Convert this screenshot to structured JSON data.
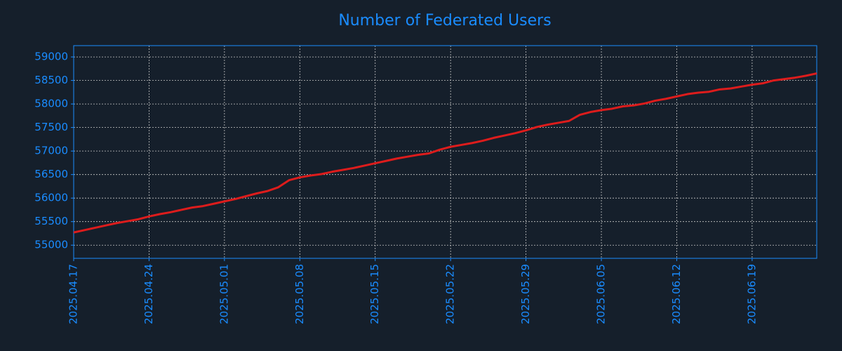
{
  "chart_data": {
    "type": "line",
    "title": "Number of Federated Users",
    "x": [
      "2025-04-17",
      "2025-04-18",
      "2025-04-19",
      "2025-04-20",
      "2025-04-21",
      "2025-04-22",
      "2025-04-23",
      "2025-04-24",
      "2025-04-25",
      "2025-04-26",
      "2025-04-27",
      "2025-04-28",
      "2025-04-29",
      "2025-04-30",
      "2025-05-01",
      "2025-05-02",
      "2025-05-03",
      "2025-05-04",
      "2025-05-05",
      "2025-05-06",
      "2025-05-07",
      "2025-05-08",
      "2025-05-09",
      "2025-05-10",
      "2025-05-11",
      "2025-05-12",
      "2025-05-13",
      "2025-05-14",
      "2025-05-15",
      "2025-05-16",
      "2025-05-17",
      "2025-05-18",
      "2025-05-19",
      "2025-05-20",
      "2025-05-21",
      "2025-05-22",
      "2025-05-23",
      "2025-05-24",
      "2025-05-25",
      "2025-05-26",
      "2025-05-27",
      "2025-05-28",
      "2025-05-29",
      "2025-05-30",
      "2025-05-31",
      "2025-06-01",
      "2025-06-02",
      "2025-06-03",
      "2025-06-04",
      "2025-06-05",
      "2025-06-06",
      "2025-06-07",
      "2025-06-08",
      "2025-06-09",
      "2025-06-10",
      "2025-06-11",
      "2025-06-12",
      "2025-06-13",
      "2025-06-14",
      "2025-06-15",
      "2025-06-16",
      "2025-06-17",
      "2025-06-18",
      "2025-06-19",
      "2025-06-20",
      "2025-06-21",
      "2025-06-22",
      "2025-06-23",
      "2025-06-24",
      "2025-06-25"
    ],
    "series": [
      {
        "color": "#dd1c1c",
        "values": [
          55270,
          55320,
          55370,
          55420,
          55470,
          55510,
          55550,
          55610,
          55660,
          55700,
          55750,
          55800,
          55830,
          55880,
          55930,
          55980,
          56040,
          56100,
          56150,
          56230,
          56380,
          56440,
          56480,
          56510,
          56560,
          56600,
          56640,
          56690,
          56740,
          56790,
          56840,
          56880,
          56920,
          56950,
          57030,
          57090,
          57130,
          57170,
          57220,
          57280,
          57330,
          57380,
          57440,
          57510,
          57560,
          57600,
          57640,
          57770,
          57830,
          57870,
          57900,
          57950,
          57970,
          58010,
          58070,
          58110,
          58160,
          58210,
          58240,
          58260,
          58310,
          58330,
          58370,
          58410,
          58440,
          58500,
          58530,
          58560,
          58600,
          58650
        ]
      }
    ],
    "xlim": [
      "2025-04-17",
      "2025-06-25"
    ],
    "xticks": [
      {
        "value": "2025-04-17",
        "label": "2025.04.17"
      },
      {
        "value": "2025-04-24",
        "label": "2025.04.24"
      },
      {
        "value": "2025-05-01",
        "label": "2025.05.01"
      },
      {
        "value": "2025-05-08",
        "label": "2025.05.08"
      },
      {
        "value": "2025-05-15",
        "label": "2025.05.15"
      },
      {
        "value": "2025-05-22",
        "label": "2025.05.22"
      },
      {
        "value": "2025-05-29",
        "label": "2025.05.29"
      },
      {
        "value": "2025-06-05",
        "label": "2025.06.05"
      },
      {
        "value": "2025-06-12",
        "label": "2025.06.12"
      },
      {
        "value": "2025-06-19",
        "label": "2025.06.19"
      }
    ],
    "ylim": [
      54720,
      59240
    ],
    "yticks": [
      55000,
      55500,
      56000,
      56500,
      57000,
      57500,
      58000,
      58500,
      59000
    ],
    "grid": true
  }
}
